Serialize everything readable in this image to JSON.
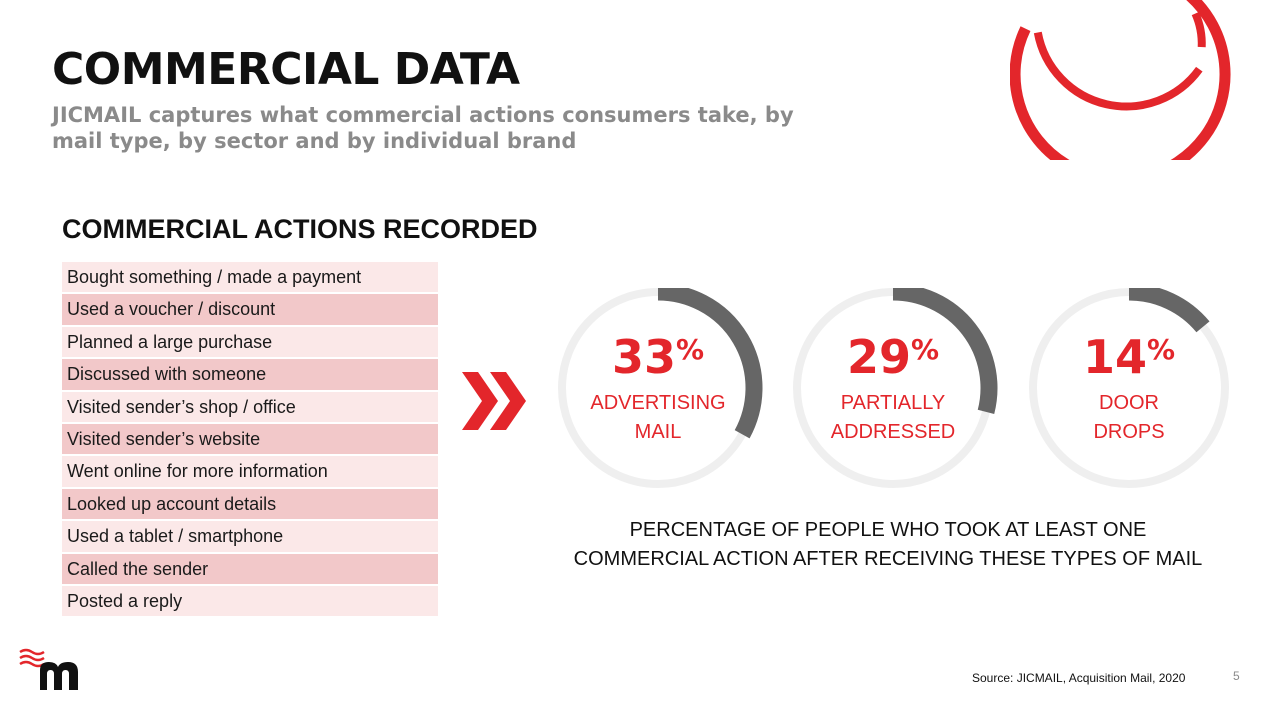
{
  "slide": {
    "title": "COMMERCIAL DATA",
    "subtitle": "JICMAIL captures what commercial actions consumers take, by mail type, by sector and by individual brand"
  },
  "actions": {
    "heading": "COMMERCIAL ACTIONS RECORDED",
    "items": [
      "Bought something / made a payment",
      "Used a voucher / discount",
      "Planned a large purchase",
      "Discussed with someone",
      "Visited sender’s shop / office",
      "Visited sender’s website",
      "Went online for more information",
      "Looked up account details",
      "Used a tablet / smartphone",
      "Called the sender",
      "Posted a reply"
    ]
  },
  "stats": [
    {
      "number": "33",
      "unit": "%",
      "label_line1": "ADVERTISING",
      "label_line2": "MAIL",
      "value": 33
    },
    {
      "number": "29",
      "unit": "%",
      "label_line1": "PARTIALLY",
      "label_line2": "ADDRESSED",
      "value": 29
    },
    {
      "number": "14",
      "unit": "%",
      "label_line1": "DOOR",
      "label_line2": "DROPS",
      "value": 14
    }
  ],
  "caption": {
    "line1": "PERCENTAGE OF PEOPLE WHO TOOK AT LEAST ONE",
    "line2": "COMMERCIAL ACTION AFTER RECEIVING THESE TYPES OF MAIL"
  },
  "footer": {
    "source": "Source:  JICMAIL, Acquisition Mail, 2020",
    "page_number": "5"
  },
  "colors": {
    "accent": "#e3262b",
    "ring_track": "#efefef",
    "ring_fill": "#666666",
    "row_light": "#fbe8e8",
    "row_dark": "#f2c8c9"
  },
  "icons": {
    "chevrons": "double-chevron-right-icon",
    "corner": "concentric-rings-logo",
    "brand": "jicmail-m-logo"
  }
}
